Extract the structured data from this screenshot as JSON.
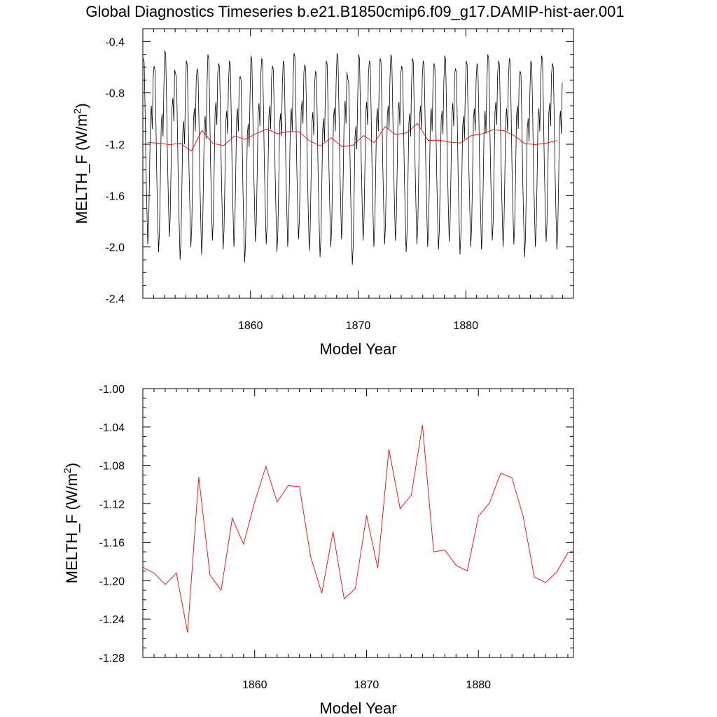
{
  "figure": {
    "title": "Global Diagnostics Timeseries b.e21.B1850cmip6.f09_g17.DAMIP-hist-aer.001"
  },
  "chart_data": [
    {
      "type": "line",
      "xlabel": "Model Year",
      "ylabel_main": "MELTH_F (W/m",
      "ylabel_sup": "2",
      "ylabel_tail": ")",
      "xlim": [
        1850,
        1890
      ],
      "ylim": [
        -2.4,
        -0.3
      ],
      "xticks": [
        1860,
        1870,
        1880
      ],
      "xtick_labels": [
        "1860",
        "1870",
        "1880"
      ],
      "yticks": [
        -2.4,
        -2.0,
        -1.6,
        -1.2,
        -0.8,
        -0.4
      ],
      "ytick_labels": [
        "-2.4",
        "-2.0",
        "-1.6",
        "-1.2",
        "-0.8",
        "-0.4"
      ],
      "grid": false,
      "series": [
        {
          "role": "monthly",
          "color": "#000000",
          "seasonal_cycle": [
            -0.55,
            -0.58,
            -0.95,
            -1.4,
            -1.72,
            -2.0,
            -1.85,
            -1.45,
            -1.0,
            -0.92,
            -1.1,
            -0.7
          ],
          "year_offsets": [
            0.02,
            -0.04,
            0.08,
            -0.1,
            0.0,
            -0.06,
            0.05,
            -0.02,
            0.0,
            -0.12,
            0.04,
            0.02,
            -0.04,
            0.0,
            0.06,
            -0.03,
            -0.08,
            0.0,
            0.06,
            -0.14,
            0.05,
            0.0,
            0.02,
            0.05,
            -0.04,
            0.02,
            0.0,
            -0.02,
            0.04,
            -0.06,
            0.0,
            -0.02,
            0.05,
            0.0,
            0.02,
            -0.08,
            0.0,
            0.04,
            -0.02
          ]
        },
        {
          "role": "annual-mean",
          "color": "#ff0000",
          "x": [
            1850.5,
            1851.5,
            1852.5,
            1853.5,
            1854.5,
            1855.5,
            1856.5,
            1857.5,
            1858.5,
            1859.5,
            1860.5,
            1861.5,
            1862.5,
            1863.5,
            1864.5,
            1865.5,
            1866.5,
            1867.5,
            1868.5,
            1869.5,
            1870.5,
            1871.5,
            1872.5,
            1873.5,
            1874.5,
            1875.5,
            1876.5,
            1877.5,
            1878.5,
            1879.5,
            1880.5,
            1881.5,
            1882.5,
            1883.5,
            1884.5,
            1885.5,
            1886.5,
            1887.5,
            1888.5
          ],
          "values": [
            -1.186,
            -1.192,
            -1.204,
            -1.192,
            -1.254,
            -1.092,
            -1.194,
            -1.21,
            -1.135,
            -1.162,
            -1.118,
            -1.081,
            -1.118,
            -1.101,
            -1.102,
            -1.175,
            -1.213,
            -1.149,
            -1.219,
            -1.208,
            -1.132,
            -1.187,
            -1.063,
            -1.125,
            -1.111,
            -1.038,
            -1.17,
            -1.168,
            -1.184,
            -1.19,
            -1.133,
            -1.119,
            -1.088,
            -1.093,
            -1.133,
            -1.196,
            -1.202,
            -1.191,
            -1.171
          ]
        }
      ]
    },
    {
      "type": "line",
      "xlabel": "Model Year",
      "ylabel_main": "MELTH_F (W/m",
      "ylabel_sup": "2",
      "ylabel_tail": ")",
      "xlim": [
        1850,
        1888.5
      ],
      "ylim": [
        -1.28,
        -1.0
      ],
      "xticks": [
        1860,
        1870,
        1880
      ],
      "xtick_labels": [
        "1860",
        "1870",
        "1880"
      ],
      "yticks": [
        -1.28,
        -1.24,
        -1.2,
        -1.16,
        -1.12,
        -1.08,
        -1.04,
        -1.0
      ],
      "ytick_labels": [
        "-1.28",
        "-1.24",
        "-1.20",
        "-1.16",
        "-1.12",
        "-1.08",
        "-1.04",
        "-1.00"
      ],
      "grid": false,
      "series": [
        {
          "role": "annual-mean",
          "color": "#ff0000",
          "x": [
            1850.0,
            1851.0,
            1852.0,
            1853.0,
            1854.0,
            1855.0,
            1856.0,
            1857.0,
            1858.0,
            1859.0,
            1860.0,
            1861.0,
            1862.0,
            1863.0,
            1864.0,
            1865.0,
            1866.0,
            1867.0,
            1868.0,
            1869.0,
            1870.0,
            1871.0,
            1872.0,
            1873.0,
            1874.0,
            1875.0,
            1876.0,
            1877.0,
            1878.0,
            1879.0,
            1880.0,
            1881.0,
            1882.0,
            1883.0,
            1884.0,
            1885.0,
            1886.0,
            1887.0,
            1888.0,
            1888.5
          ],
          "values": [
            -1.186,
            -1.192,
            -1.204,
            -1.192,
            -1.254,
            -1.092,
            -1.194,
            -1.21,
            -1.135,
            -1.162,
            -1.118,
            -1.081,
            -1.118,
            -1.101,
            -1.102,
            -1.175,
            -1.213,
            -1.149,
            -1.219,
            -1.208,
            -1.132,
            -1.187,
            -1.063,
            -1.125,
            -1.111,
            -1.038,
            -1.17,
            -1.168,
            -1.184,
            -1.19,
            -1.133,
            -1.119,
            -1.088,
            -1.093,
            -1.133,
            -1.196,
            -1.202,
            -1.191,
            -1.171,
            -1.171
          ]
        }
      ]
    }
  ]
}
